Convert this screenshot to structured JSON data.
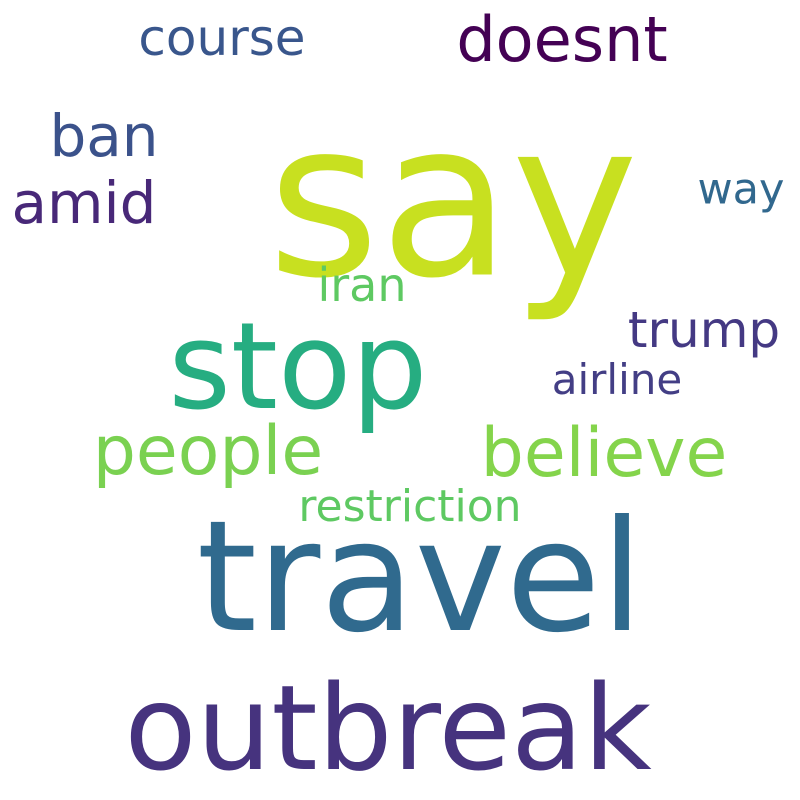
{
  "words": {
    "say": {
      "text": "say",
      "color": "#c8e020"
    },
    "travel": {
      "text": "travel",
      "color": "#306a8e"
    },
    "outbreak": {
      "text": "outbreak",
      "color": "#46337e"
    },
    "stop": {
      "text": "stop",
      "color": "#26ad81"
    },
    "people": {
      "text": "people",
      "color": "#7ad151"
    },
    "believe": {
      "text": "believe",
      "color": "#84d44b"
    },
    "doesnt": {
      "text": "doesnt",
      "color": "#440154"
    },
    "course": {
      "text": "course",
      "color": "#39568c"
    },
    "ban": {
      "text": "ban",
      "color": "#3b528b"
    },
    "amid": {
      "text": "amid",
      "color": "#482878"
    },
    "way": {
      "text": "way",
      "color": "#31688e"
    },
    "iran": {
      "text": "iran",
      "color": "#5ec962"
    },
    "trump": {
      "text": "trump",
      "color": "#443983"
    },
    "airline": {
      "text": "airline",
      "color": "#433e85"
    },
    "restriction": {
      "text": "restriction",
      "color": "#5ec962"
    }
  }
}
